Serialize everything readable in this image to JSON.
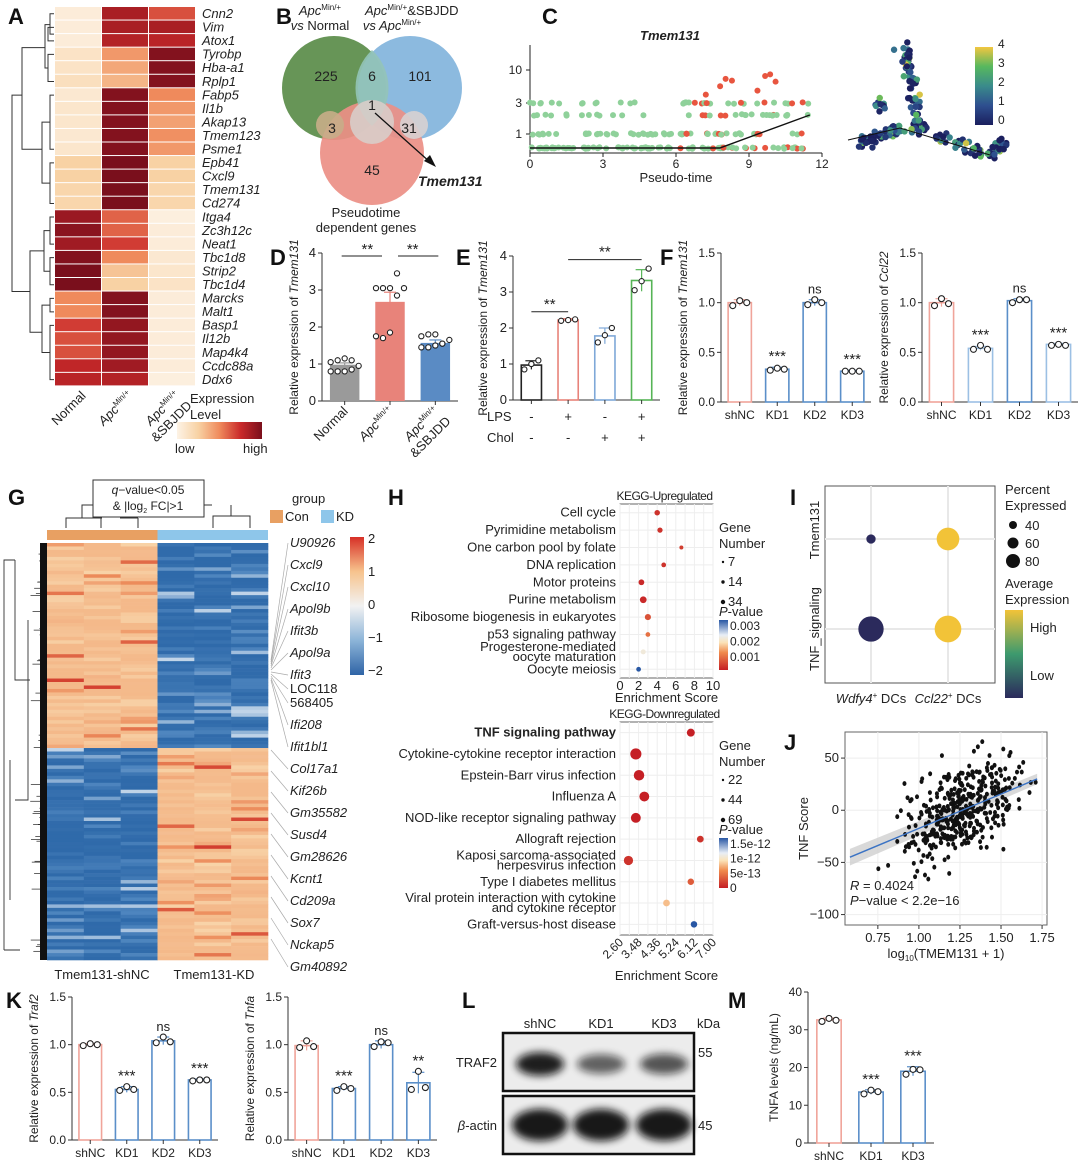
{
  "panel_labels": [
    "A",
    "B",
    "C",
    "D",
    "E",
    "F",
    "G",
    "H",
    "I",
    "J",
    "K",
    "L",
    "M"
  ],
  "chart_data": [
    {
      "panel": "A",
      "type": "heatmap",
      "columns": [
        "Normal",
        "ApcMin/+",
        "ApcMin/+&SBJDD"
      ],
      "column_labels": [
        {
          "base": "Normal",
          "sup": ""
        },
        {
          "base": "Apc",
          "sup": "Min/+"
        },
        {
          "base": "Apc",
          "sup": "Min/+",
          "line2": "&SBJDD"
        }
      ],
      "rows": [
        "Cnn2",
        "Vim",
        "Atox1",
        "Tyrobp",
        "Hba-a1",
        "Rplp1",
        "Fabp5",
        "Il1b",
        "Akap13",
        "Tmem123",
        "Psme1",
        "Epb41",
        "Cxcl9",
        "Tmem131",
        "Cd274",
        "Itga4",
        "Zc3h12c",
        "Neat1",
        "Tbc1d8",
        "Strip2",
        "Tbc1d4",
        "Marcks",
        "Malt1",
        "Basp1",
        "Il12b",
        "Map4k4",
        "Ccdc88a",
        "Ddx6"
      ],
      "values": [
        [
          0.05,
          0.85,
          0.65
        ],
        [
          0.05,
          0.85,
          0.85
        ],
        [
          0.05,
          0.82,
          0.8
        ],
        [
          0.12,
          0.45,
          0.97
        ],
        [
          0.12,
          0.4,
          0.97
        ],
        [
          0.15,
          0.35,
          0.97
        ],
        [
          0.08,
          0.97,
          0.5
        ],
        [
          0.1,
          0.97,
          0.45
        ],
        [
          0.1,
          0.97,
          0.42
        ],
        [
          0.08,
          0.97,
          0.48
        ],
        [
          0.1,
          0.97,
          0.45
        ],
        [
          0.25,
          1.0,
          0.25
        ],
        [
          0.25,
          1.0,
          0.25
        ],
        [
          0.22,
          1.0,
          0.22
        ],
        [
          0.22,
          1.0,
          0.22
        ],
        [
          0.9,
          0.6,
          0.03
        ],
        [
          0.95,
          0.6,
          0.05
        ],
        [
          0.88,
          0.7,
          0.05
        ],
        [
          0.97,
          0.5,
          0.08
        ],
        [
          1.0,
          0.3,
          0.1
        ],
        [
          1.0,
          0.25,
          0.12
        ],
        [
          0.5,
          0.97,
          0.05
        ],
        [
          0.5,
          0.97,
          0.05
        ],
        [
          0.7,
          0.92,
          0.05
        ],
        [
          0.65,
          0.92,
          0.05
        ],
        [
          0.65,
          0.92,
          0.05
        ],
        [
          0.78,
          0.88,
          0.05
        ],
        [
          0.8,
          0.82,
          0.03
        ]
      ],
      "legend": {
        "title_line1": "Expression",
        "title_line2": "Level",
        "low": "low",
        "high": "high"
      }
    },
    {
      "panel": "B",
      "type": "venn",
      "sets": [
        {
          "label_line1": "Apc",
          "label_sup": "Min/+",
          "label_line2": "vs Normal",
          "color": "#5f8f4e"
        },
        {
          "label_line1": "Apc",
          "label_sup1": "Min/+",
          "label_mid": "&SBJDD",
          "label_line2": "vs Apc",
          "label_sup2": "Min/+",
          "color": "#7fb2dc"
        },
        {
          "label_line1": "Pseudotime",
          "label_line2": "dependent genes",
          "color": "#ec8f86"
        }
      ],
      "regions": {
        "only_1": 225,
        "only_2": 101,
        "only_3": 45,
        "1_2": 6,
        "1_3": 3,
        "2_3": 31,
        "1_2_3": 1
      },
      "highlight": "Tmem131",
      "highlight_color": "#e8736a"
    },
    {
      "panel": "C",
      "type": "scatter",
      "title": "Tmem131",
      "xlabel": "Pseudo-time",
      "xticks": [
        0,
        3,
        6,
        9,
        12
      ],
      "yticks": [
        1,
        3,
        10
      ],
      "xlim": [
        0,
        12
      ],
      "colors": {
        "state_early": "#8fd19a",
        "state_late": "#e8553f"
      },
      "trend": [
        [
          0,
          0.5
        ],
        [
          7.8,
          0.5
        ],
        [
          11.5,
          2.2
        ]
      ],
      "trajectory_colorbar": {
        "ticks": [
          0,
          1,
          2,
          3,
          4
        ]
      }
    },
    {
      "panel": "D",
      "type": "bar",
      "ylabel": "Relative expression of Tmem131",
      "ylim": [
        0,
        4
      ],
      "yticks": [
        0,
        1,
        2,
        3,
        4
      ],
      "categories": [
        "Normal",
        "ApcMin/+",
        "ApcMin/+&SBJDD"
      ],
      "values": [
        0.98,
        2.68,
        1.57
      ],
      "errors": [
        0.05,
        0.26,
        0.08
      ],
      "points": [
        [
          0.8,
          0.8,
          0.8,
          0.85,
          0.95,
          1.05,
          1.1,
          1.15,
          1.1
        ],
        [
          1.75,
          1.7,
          1.85,
          2.85,
          3.05,
          3.05,
          3.05,
          3.05,
          3.45
        ],
        [
          1.45,
          1.45,
          1.5,
          1.55,
          1.65,
          1.75,
          1.8,
          1.8,
          1.55
        ]
      ],
      "bar_colors": [
        "#9a9a9a",
        "#e8837a",
        "#5a8bc4"
      ],
      "significance": [
        {
          "from": 0,
          "to": 1,
          "label": "**"
        },
        {
          "from": 1,
          "to": 2,
          "label": "**"
        }
      ]
    },
    {
      "panel": "E",
      "type": "bar",
      "ylabel": "Relative expression of Tmem131",
      "ylim": [
        0,
        4
      ],
      "yticks": [
        0,
        1,
        2,
        3,
        4
      ],
      "row_labels": [
        "LPS",
        "Chol"
      ],
      "conditions": [
        [
          "-",
          "+",
          "-",
          "+"
        ],
        [
          "-",
          "-",
          "+",
          "+"
        ]
      ],
      "values": [
        0.97,
        2.22,
        1.78,
        3.32
      ],
      "errors": [
        0.12,
        0.04,
        0.22,
        0.3
      ],
      "points": [
        [
          0.85,
          1.0,
          1.1
        ],
        [
          2.2,
          2.22,
          2.24
        ],
        [
          1.6,
          1.8,
          2.0
        ],
        [
          3.05,
          3.3,
          3.65
        ]
      ],
      "bar_colors": [
        "#222222",
        "#e8837a",
        "#7fa8d8",
        "#56b456"
      ],
      "significance": [
        {
          "from": 0,
          "to": 1,
          "label": "**"
        },
        {
          "from": 1,
          "to": 3,
          "label": "**"
        }
      ]
    },
    {
      "panel": "F1",
      "type": "bar",
      "ylabel": "Relative expression of Tmem131",
      "ylim": [
        0,
        1.5
      ],
      "yticks": [
        "0.0",
        "0.5",
        "1.0",
        "1.5"
      ],
      "categories": [
        "shNC",
        "KD1",
        "KD2",
        "KD3"
      ],
      "values": [
        1.0,
        0.33,
        1.0,
        0.31
      ],
      "errors": [
        0.03,
        0.02,
        0.03,
        0.01
      ],
      "points": [
        [
          0.97,
          1.02,
          1.0
        ],
        [
          0.32,
          0.34,
          0.33
        ],
        [
          0.98,
          1.03,
          1.0
        ],
        [
          0.31,
          0.31,
          0.31
        ]
      ],
      "bar_colors": [
        "#f0a49a",
        "#5b8fc9",
        "#5b8fc9",
        "#5b8fc9"
      ],
      "annotations": [
        "",
        "***",
        "ns",
        "***"
      ]
    },
    {
      "panel": "F2",
      "type": "bar",
      "ylabel": "Relative expression of Ccl22",
      "ylim": [
        0,
        1.5
      ],
      "yticks": [
        "0.0",
        "0.5",
        "1.0",
        "1.5"
      ],
      "categories": [
        "shNC",
        "KD1",
        "KD2",
        "KD3"
      ],
      "values": [
        1.0,
        0.54,
        1.02,
        0.58
      ],
      "errors": [
        0.04,
        0.02,
        0.02,
        0.01
      ],
      "points": [
        [
          0.97,
          1.04,
          0.99
        ],
        [
          0.53,
          0.57,
          0.53
        ],
        [
          1.0,
          1.03,
          1.03
        ],
        [
          0.57,
          0.58,
          0.57
        ]
      ],
      "bar_colors": [
        "#f0a49a",
        "#9cc0e4",
        "#5b8fc9",
        "#9cc0e4"
      ],
      "annotations": [
        "",
        "***",
        "ns",
        "***"
      ]
    },
    {
      "panel": "G",
      "type": "heatmap",
      "annotation": {
        "line1": "q-value<0.05",
        "line2": "& |log2 FC|>1"
      },
      "legend_title": "group",
      "groups": [
        {
          "name": "Con",
          "color": "#e8a062"
        },
        {
          "name": "KD",
          "color": "#8ec6ea"
        }
      ],
      "colorbar_ticks": [
        2,
        1,
        0,
        -1,
        -2
      ],
      "col_labels": [
        "Tmem131-shNC",
        "Tmem131-KD"
      ],
      "gene_labels": [
        "U90926",
        "Cxcl9",
        "Cxcl10",
        "Apol9b",
        "Ifit3b",
        "Apol9a",
        "Ifit3",
        "LOC118",
        "568405",
        "Ifi208",
        "Ifit1bl1",
        "Col17a1",
        "Kif26b",
        "Gm35582",
        "Susd4",
        "Gm28626",
        "Kcnt1",
        "Cd209a",
        "Sox7",
        "Nckap5",
        "Gm40892"
      ],
      "split_fraction": 0.49
    },
    {
      "panel": "H-up",
      "type": "scatter",
      "title": "KEGG-Upregulated",
      "xlabel": "Enrichment Score",
      "xticks": [
        0,
        2,
        4,
        6,
        8,
        10
      ],
      "xlim": [
        0,
        10
      ],
      "terms": [
        "Cell cycle",
        "Pyrimidine metabolism",
        "One carbon pool by folate",
        "DNA replication",
        "Motor proteins",
        "Purine metabolism",
        "Ribosome biogenesis in eukaryotes",
        "p53 signaling pathway",
        "Progesterone-mediated|oocyte maturation",
        "Oocyte meiosis"
      ],
      "enrichment": [
        4.0,
        4.3,
        6.6,
        4.7,
        2.3,
        2.5,
        3.0,
        3.0,
        2.5,
        2.0
      ],
      "gene_number": [
        20,
        18,
        8,
        14,
        22,
        30,
        25,
        14,
        16,
        14
      ],
      "pvalue": [
        0.0002,
        0.0002,
        0.0003,
        0.0002,
        0.0001,
        0.0001,
        0.0005,
        0.0008,
        0.0019,
        0.003
      ],
      "size_legend": {
        "title_line1": "Gene",
        "title_line2": "Number",
        "values": [
          7,
          14,
          34
        ]
      },
      "color_legend": {
        "title": "P-value",
        "ticks": [
          "0.003",
          "0.002",
          "0.001"
        ]
      }
    },
    {
      "panel": "H-down",
      "type": "scatter",
      "title": "KEGG-Downregulated",
      "xlabel": "Enrichment Score",
      "xticks": [
        "2.60",
        "3.48",
        "4.36",
        "5.24",
        "6.12",
        "7.00"
      ],
      "xlim": [
        2.6,
        7.0
      ],
      "highlight_term": "TNF signaling pathway",
      "highlight_color": "#f08070",
      "terms": [
        "TNF signaling pathway",
        "Cytokine-cytokine receptor interaction",
        "Epstein-Barr virus infection",
        "Influenza A",
        "NOD-like receptor signaling pathway",
        "Allograft rejection",
        "Kaposi sarcoma-associated|herpesvirus infection",
        "Type I diabetes mellitus",
        "Viral protein interaction with cytokine|and cytokine receptor",
        "Graft-versus-host disease"
      ],
      "enrichment": [
        5.95,
        3.35,
        3.5,
        3.75,
        3.35,
        6.4,
        3.0,
        5.95,
        4.8,
        6.1
      ],
      "gene_number": [
        40,
        65,
        60,
        55,
        55,
        30,
        50,
        28,
        30,
        28
      ],
      "pvalue": [
        0.0,
        0.0,
        0.0,
        0.0,
        0.0,
        1e-13,
        1e-13,
        3e-13,
        7e-13,
        1.5e-12
      ],
      "size_legend": {
        "title_line1": "Gene",
        "title_line2": "Number",
        "values": [
          22,
          44,
          69
        ]
      },
      "color_legend": {
        "title": "P-value",
        "ticks": [
          "1.5e-12",
          "1e-12",
          "5e-13",
          "0"
        ]
      }
    },
    {
      "panel": "I",
      "type": "scatter",
      "subtype": "dotplot",
      "y_categories": [
        "Tmem131",
        "TNF_signaling"
      ],
      "x_categories": [
        {
          "base": "Wdfy4",
          "sup": "+",
          "suffix": " DCs"
        },
        {
          "base": "Ccl22",
          "sup": "+",
          "suffix": " DCs"
        }
      ],
      "percent_expressed": [
        [
          20,
          70
        ],
        [
          80,
          85
        ]
      ],
      "avg_expression": [
        [
          0.0,
          1.0
        ],
        [
          0.0,
          1.0
        ]
      ],
      "size_legend": {
        "title_line1": "Percent",
        "title_line2": "Expressed",
        "values": [
          40,
          60,
          80
        ]
      },
      "color_legend": {
        "title_line1": "Average",
        "title_line2": "Expression",
        "high": "High",
        "low": "Low"
      }
    },
    {
      "panel": "J",
      "type": "scatter",
      "xlabel": "log10(TMEM131 + 1)",
      "ylabel": "TNF Score",
      "xlim": [
        0.55,
        1.78
      ],
      "ylim": [
        -110,
        75
      ],
      "xticks": [
        "0.75",
        "1.00",
        "1.25",
        "1.50",
        "1.75"
      ],
      "yticks": [
        50,
        0,
        -50,
        -100
      ],
      "regression": {
        "x0": 0.58,
        "y0": -45,
        "x1": 1.72,
        "y1": 30
      },
      "stats": {
        "r_label": "R",
        "r_value": " = 0.4024",
        "p_label": "P",
        "p_value": "−value < 2.2e−16"
      },
      "n_points": 420,
      "regression_color": "#3b73c4"
    },
    {
      "panel": "K1",
      "type": "bar",
      "ylabel": "Relative expression of Traf2",
      "ylim": [
        0,
        1.5
      ],
      "yticks": [
        "0.0",
        "0.5",
        "1.0",
        "1.5"
      ],
      "categories": [
        "shNC",
        "KD1",
        "KD2",
        "KD3"
      ],
      "values": [
        1.0,
        0.53,
        1.04,
        0.63
      ],
      "errors": [
        0.01,
        0.03,
        0.04,
        0.01
      ],
      "points": [
        [
          0.99,
          1.01,
          1.0
        ],
        [
          0.52,
          0.56,
          0.53
        ],
        [
          1.02,
          1.08,
          1.03
        ],
        [
          0.62,
          0.63,
          0.63
        ]
      ],
      "bar_colors": [
        "#f0a49a",
        "#5b8fc9",
        "#5b8fc9",
        "#5b8fc9"
      ],
      "annotations": [
        "",
        "***",
        "ns",
        "***"
      ]
    },
    {
      "panel": "K2",
      "type": "bar",
      "ylabel": "Relative expression of Tnfa",
      "ylim": [
        0,
        1.5
      ],
      "yticks": [
        "0.0",
        "0.5",
        "1.0",
        "1.5"
      ],
      "categories": [
        "shNC",
        "KD1",
        "KD2",
        "KD3"
      ],
      "values": [
        0.99,
        0.54,
        1.0,
        0.6
      ],
      "errors": [
        0.05,
        0.02,
        0.04,
        0.11
      ],
      "points": [
        [
          0.97,
          1.04,
          0.98
        ],
        [
          0.52,
          0.56,
          0.54
        ],
        [
          0.98,
          1.03,
          1.02
        ],
        [
          0.53,
          0.72,
          0.55
        ]
      ],
      "bar_colors": [
        "#f0a49a",
        "#5b8fc9",
        "#5b8fc9",
        "#5b8fc9"
      ],
      "annotations": [
        "",
        "***",
        "ns",
        "**"
      ]
    },
    {
      "panel": "L",
      "type": "table",
      "subtype": "western_blot",
      "lanes": [
        "shNC",
        "KD1",
        "KD3"
      ],
      "unit": "kDa",
      "blots": [
        {
          "protein": "TRAF2",
          "kda": "55",
          "intensity": [
            0.95,
            0.45,
            0.55
          ]
        },
        {
          "protein": "β-actin",
          "kda": "45",
          "intensity": [
            1.0,
            1.0,
            1.0
          ]
        }
      ]
    },
    {
      "panel": "M",
      "type": "bar",
      "ylabel": "TNFA levels (ng/mL)",
      "ylim": [
        0,
        40
      ],
      "yticks": [
        0,
        10,
        20,
        30,
        40
      ],
      "categories": [
        "shNC",
        "KD1",
        "KD3"
      ],
      "values": [
        32.6,
        13.5,
        19.0
      ],
      "errors": [
        0.5,
        0.6,
        1.2
      ],
      "points": [
        [
          32.2,
          33.0,
          32.5
        ],
        [
          13.0,
          14.0,
          13.6
        ],
        [
          18.2,
          19.5,
          19.4
        ]
      ],
      "bar_colors": [
        "#f0a49a",
        "#5b8fc9",
        "#5b8fc9"
      ],
      "annotations": [
        "",
        "***",
        "***"
      ]
    }
  ]
}
